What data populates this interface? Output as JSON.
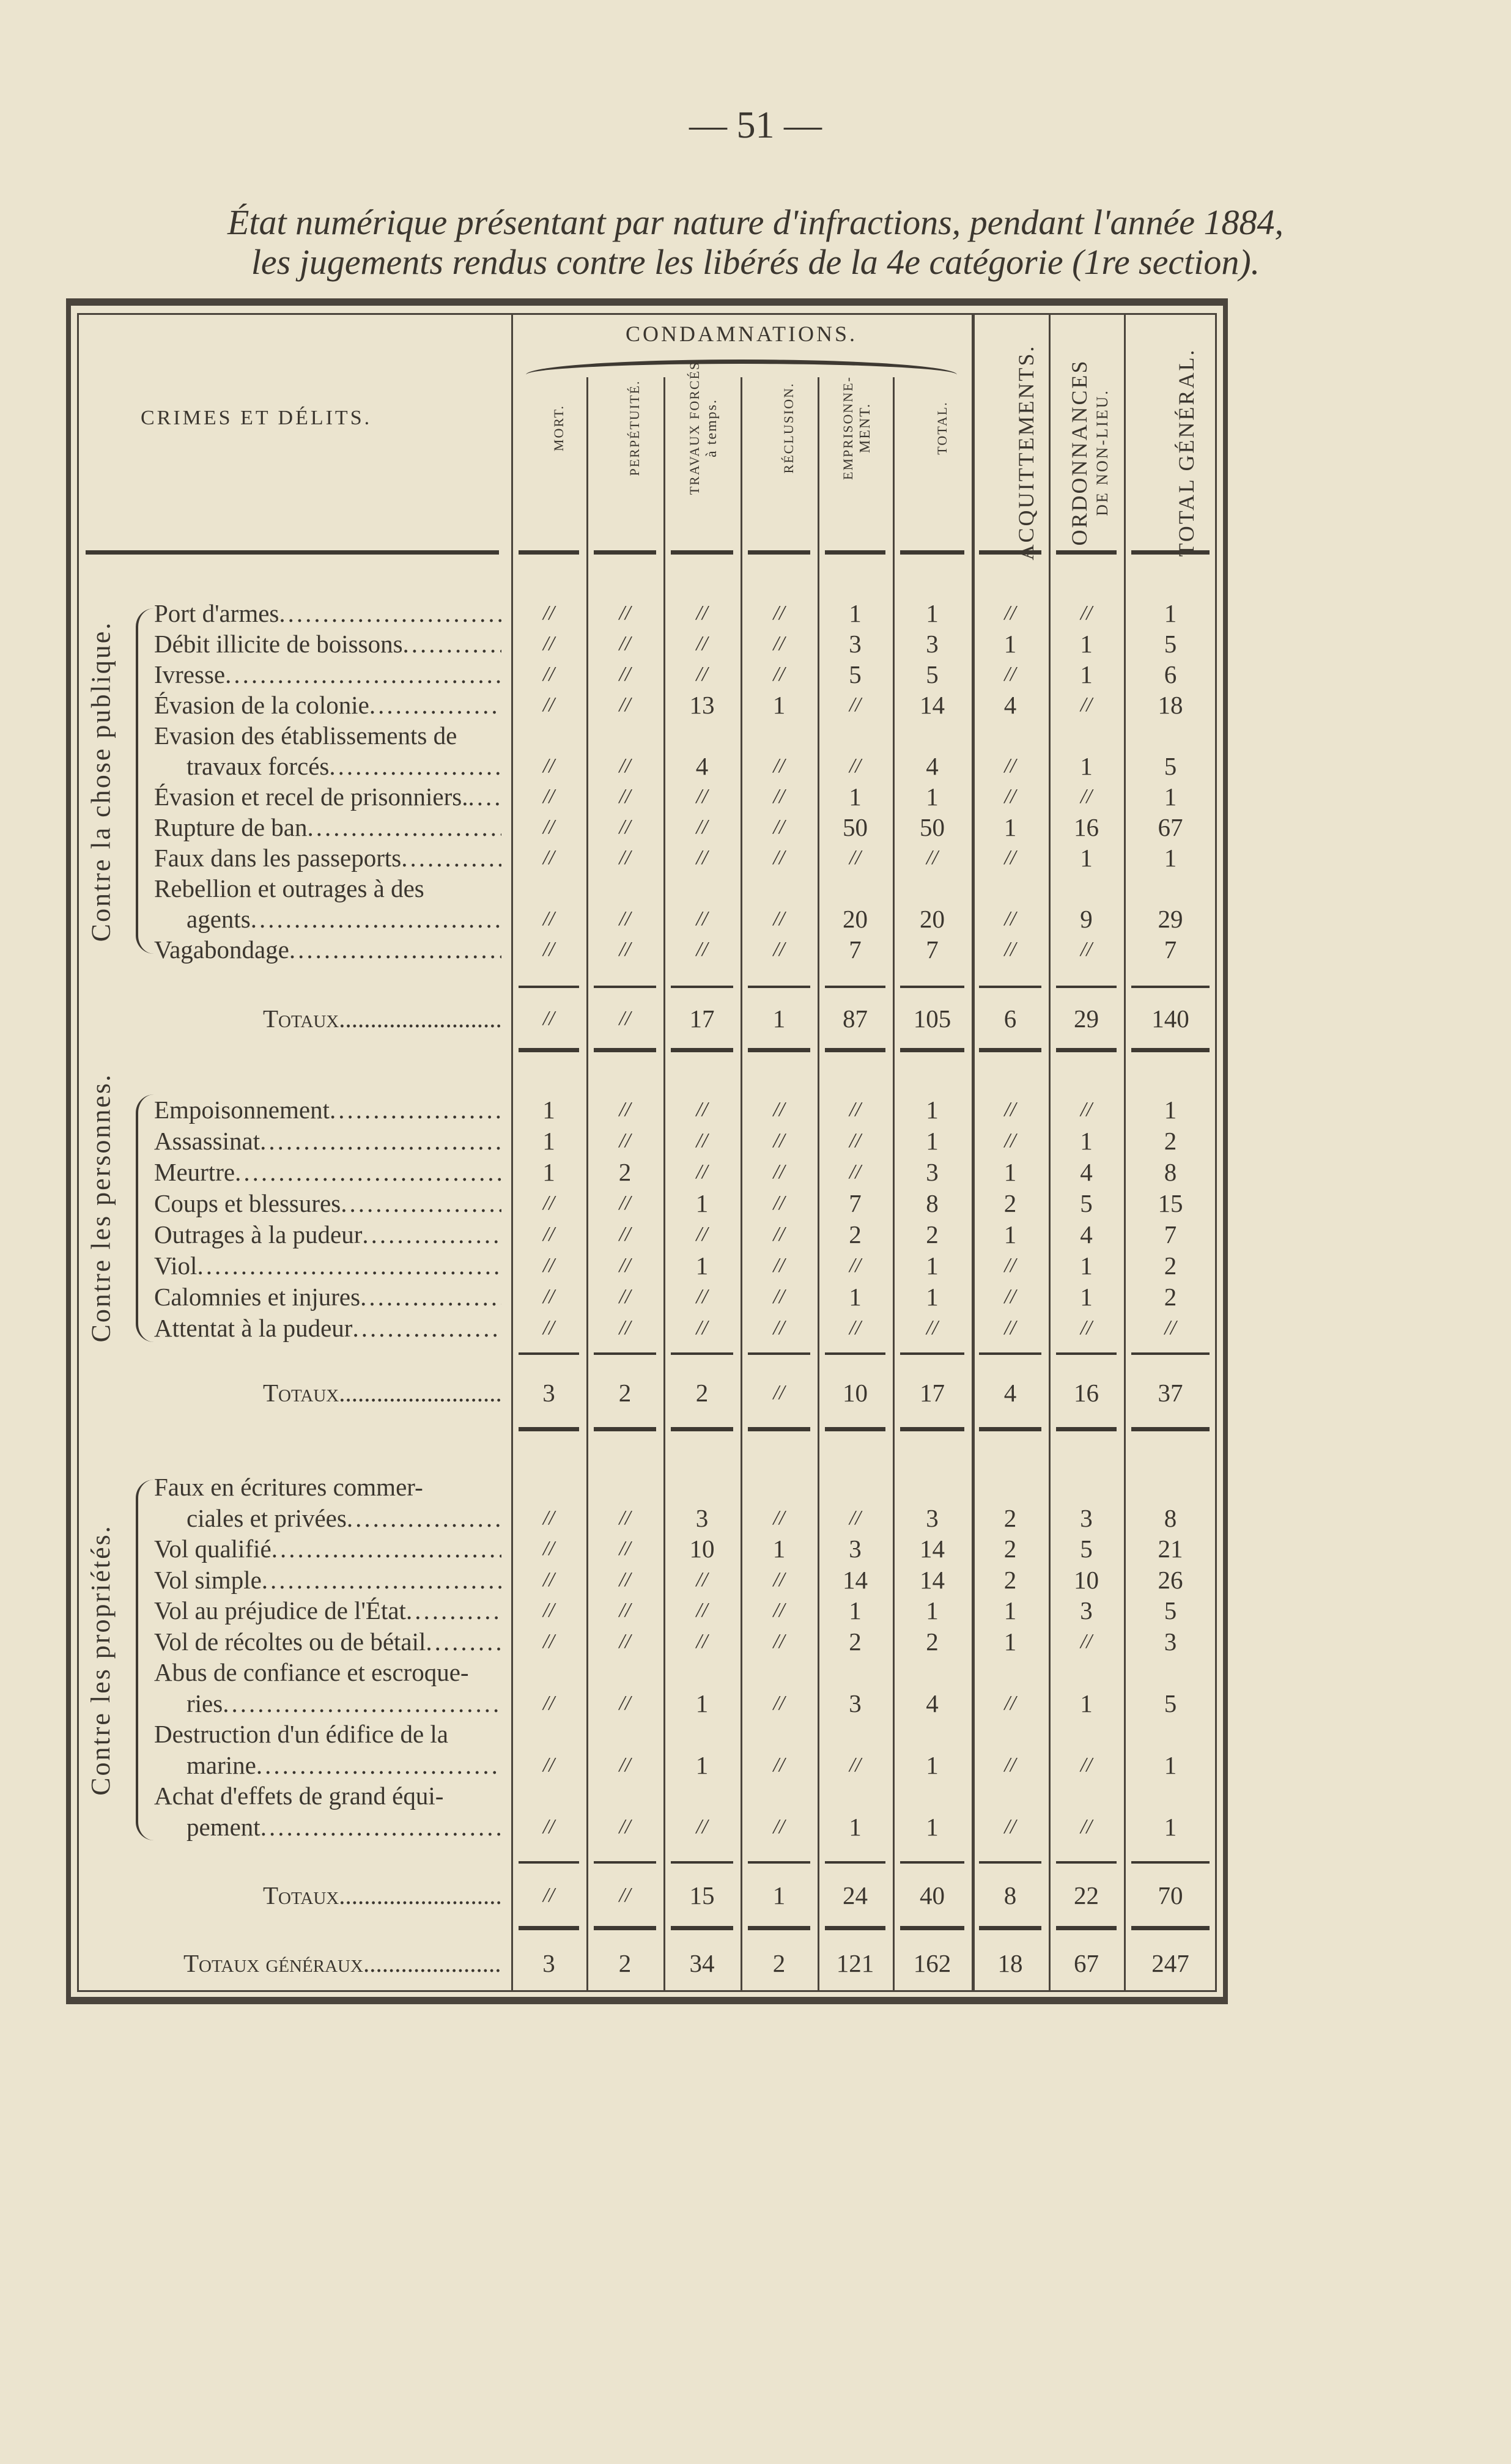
{
  "page_number": "— 51 —",
  "title_line1": "État numérique présentant par nature d'infractions, pendant l'année 1884,",
  "title_line2": "les jugements rendus contre les libérés de la 4e catégorie (1re section).",
  "table": {
    "row_header": "CRIMES ET DÉLITS.",
    "group_header": "CONDAMNATIONS.",
    "columns": [
      {
        "line1": "MORT.",
        "line2": ""
      },
      {
        "line1": "PERPÉTUITÉ.",
        "line2": ""
      },
      {
        "line1": "TRAVAUX FORCÉS",
        "line2": "à temps."
      },
      {
        "line1": "RÉCLUSION.",
        "line2": ""
      },
      {
        "line1": "EMPRISONNE-",
        "line2": "MENT."
      },
      {
        "line1": "TOTAL.",
        "line2": ""
      },
      {
        "line1": "ACQUITTEMENTS.",
        "line2": ""
      },
      {
        "line1": "ORDONNANCES",
        "line2": "DE NON-LIEU."
      },
      {
        "line1": "TOTAL GÉNÉRAL.",
        "line2": ""
      }
    ],
    "sections": [
      {
        "group": "Contre la chose publique.",
        "rows": [
          {
            "label": [
              "Port d'armes"
            ],
            "values": [
              "//",
              "//",
              "//",
              "//",
              "1",
              "1",
              "//",
              "//",
              "1"
            ]
          },
          {
            "label": [
              "Débit illicite de boissons"
            ],
            "values": [
              "//",
              "//",
              "//",
              "//",
              "3",
              "3",
              "1",
              "1",
              "5"
            ]
          },
          {
            "label": [
              "Ivresse"
            ],
            "values": [
              "//",
              "//",
              "//",
              "//",
              "5",
              "5",
              "//",
              "1",
              "6"
            ]
          },
          {
            "label": [
              "Évasion de la colonie"
            ],
            "values": [
              "//",
              "//",
              "13",
              "1",
              "//",
              "14",
              "4",
              "//",
              "18"
            ]
          },
          {
            "label": [
              "Evasion des établissements de",
              "travaux forcés"
            ],
            "values": [
              "//",
              "//",
              "4",
              "//",
              "//",
              "4",
              "//",
              "1",
              "5"
            ]
          },
          {
            "label": [
              "Évasion et recel de prisonniers."
            ],
            "values": [
              "//",
              "//",
              "//",
              "//",
              "1",
              "1",
              "//",
              "//",
              "1"
            ]
          },
          {
            "label": [
              "Rupture de ban"
            ],
            "values": [
              "//",
              "//",
              "//",
              "//",
              "50",
              "50",
              "1",
              "16",
              "67"
            ]
          },
          {
            "label": [
              "Faux dans les passeports"
            ],
            "values": [
              "//",
              "//",
              "//",
              "//",
              "//",
              "//",
              "//",
              "1",
              "1"
            ]
          },
          {
            "label": [
              "Rebellion et outrages à des",
              "agents"
            ],
            "values": [
              "//",
              "//",
              "//",
              "//",
              "20",
              "20",
              "//",
              "9",
              "29"
            ]
          },
          {
            "label": [
              "Vagabondage"
            ],
            "values": [
              "//",
              "//",
              "//",
              "//",
              "7",
              "7",
              "//",
              "//",
              "7"
            ]
          }
        ],
        "total_label": "Totaux",
        "totals": [
          "//",
          "//",
          "17",
          "1",
          "87",
          "105",
          "6",
          "29",
          "140"
        ]
      },
      {
        "group": "Contre les personnes.",
        "rows": [
          {
            "label": [
              "Empoisonnement"
            ],
            "values": [
              "1",
              "//",
              "//",
              "//",
              "//",
              "1",
              "//",
              "//",
              "1"
            ]
          },
          {
            "label": [
              "Assassinat"
            ],
            "values": [
              "1",
              "//",
              "//",
              "//",
              "//",
              "1",
              "//",
              "1",
              "2"
            ]
          },
          {
            "label": [
              "Meurtre"
            ],
            "values": [
              "1",
              "2",
              "//",
              "//",
              "//",
              "3",
              "1",
              "4",
              "8"
            ]
          },
          {
            "label": [
              "Coups et blessures"
            ],
            "values": [
              "//",
              "//",
              "1",
              "//",
              "7",
              "8",
              "2",
              "5",
              "15"
            ]
          },
          {
            "label": [
              "Outrages à la pudeur"
            ],
            "values": [
              "//",
              "//",
              "//",
              "//",
              "2",
              "2",
              "1",
              "4",
              "7"
            ]
          },
          {
            "label": [
              "Viol"
            ],
            "values": [
              "//",
              "//",
              "1",
              "//",
              "//",
              "1",
              "//",
              "1",
              "2"
            ]
          },
          {
            "label": [
              "Calomnies et injures"
            ],
            "values": [
              "//",
              "//",
              "//",
              "//",
              "1",
              "1",
              "//",
              "1",
              "2"
            ]
          },
          {
            "label": [
              "Attentat à la pudeur"
            ],
            "values": [
              "//",
              "//",
              "//",
              "//",
              "//",
              "//",
              "//",
              "//",
              "//"
            ]
          }
        ],
        "total_label": "Totaux",
        "totals": [
          "3",
          "2",
          "2",
          "//",
          "10",
          "17",
          "4",
          "16",
          "37"
        ]
      },
      {
        "group": "Contre les propriétés.",
        "rows": [
          {
            "label": [
              "Faux en écritures commer-",
              "ciales et privées"
            ],
            "values": [
              "//",
              "//",
              "3",
              "//",
              "//",
              "3",
              "2",
              "3",
              "8"
            ]
          },
          {
            "label": [
              "Vol qualifié"
            ],
            "values": [
              "//",
              "//",
              "10",
              "1",
              "3",
              "14",
              "2",
              "5",
              "21"
            ]
          },
          {
            "label": [
              "Vol simple"
            ],
            "values": [
              "//",
              "//",
              "//",
              "//",
              "14",
              "14",
              "2",
              "10",
              "26"
            ]
          },
          {
            "label": [
              "Vol au préjudice de l'État"
            ],
            "values": [
              "//",
              "//",
              "//",
              "//",
              "1",
              "1",
              "1",
              "3",
              "5"
            ]
          },
          {
            "label": [
              "Vol de récoltes ou de bétail"
            ],
            "values": [
              "//",
              "//",
              "//",
              "//",
              "2",
              "2",
              "1",
              "//",
              "3"
            ]
          },
          {
            "label": [
              "Abus de confiance et escroque-",
              "ries"
            ],
            "values": [
              "//",
              "//",
              "1",
              "//",
              "3",
              "4",
              "//",
              "1",
              "5"
            ]
          },
          {
            "label": [
              "Destruction d'un édifice de la",
              "marine"
            ],
            "values": [
              "//",
              "//",
              "1",
              "//",
              "//",
              "1",
              "//",
              "//",
              "1"
            ]
          },
          {
            "label": [
              "Achat d'effets de grand équi-",
              "pement"
            ],
            "values": [
              "//",
              "//",
              "//",
              "//",
              "1",
              "1",
              "//",
              "//",
              "1"
            ]
          }
        ],
        "total_label": "Totaux",
        "totals": [
          "//",
          "//",
          "15",
          "1",
          "24",
          "40",
          "8",
          "22",
          "70"
        ]
      }
    ],
    "grand_total_label": "Totaux généraux",
    "grand_totals": [
      "3",
      "2",
      "34",
      "2",
      "121",
      "162",
      "18",
      "67",
      "247"
    ]
  }
}
